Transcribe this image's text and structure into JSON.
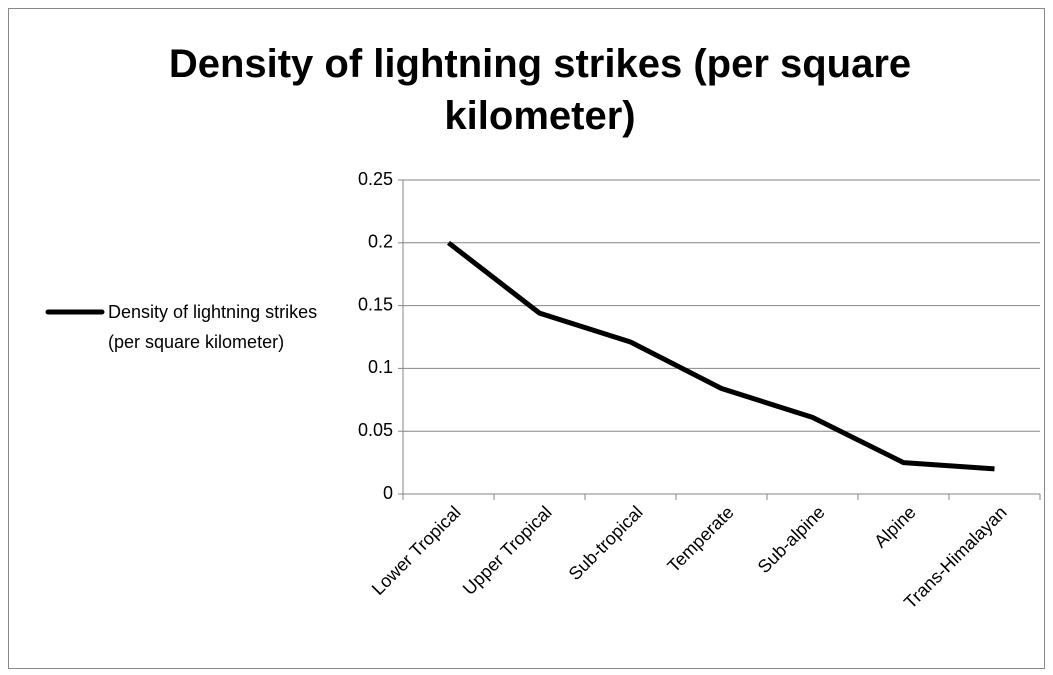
{
  "chart_data": {
    "type": "line",
    "title": "Density of lightning strikes (per square kilometer)",
    "categories": [
      "Lower Tropical",
      "Upper Tropical",
      "Sub-tropical",
      "Temperate",
      "Sub-alpine",
      "Alpine",
      "Trans-Himalayan"
    ],
    "series": [
      {
        "name": "Density of lightning strikes (per square kilometer)",
        "color": "#000000",
        "values": [
          0.2,
          0.144,
          0.121,
          0.084,
          0.061,
          0.025,
          0.02
        ]
      }
    ],
    "ylim": [
      0,
      0.25
    ],
    "yticks": [
      0,
      0.05,
      0.1,
      0.15,
      0.2,
      0.25
    ],
    "grid": true,
    "legend": "left"
  }
}
